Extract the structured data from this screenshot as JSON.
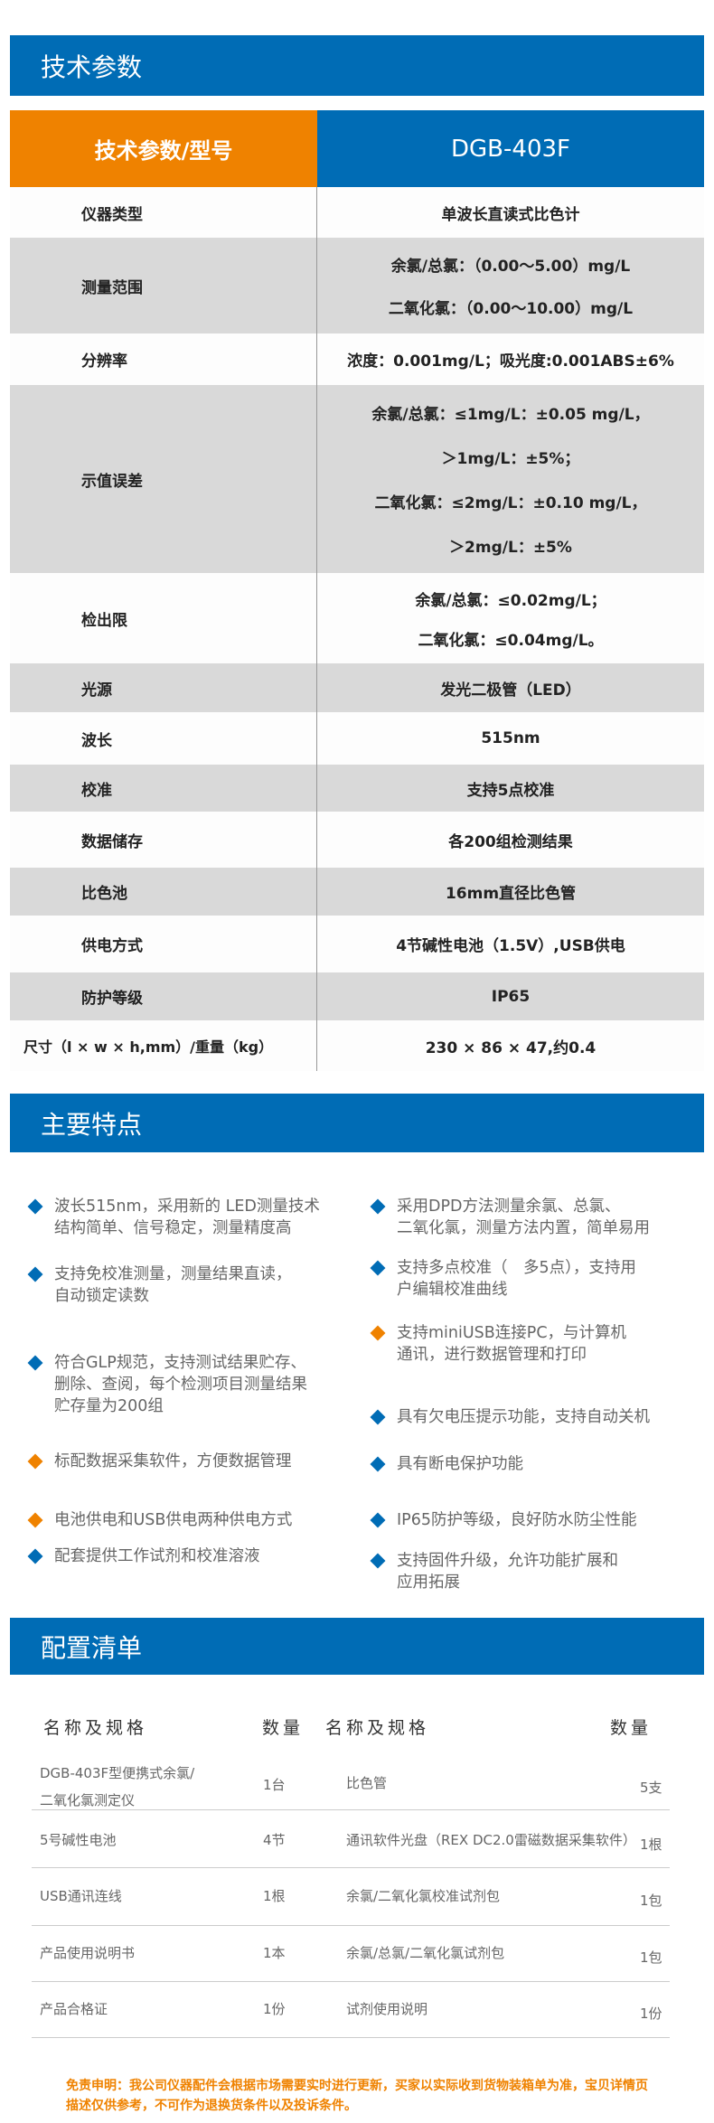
{
  "colors": {
    "blue": "#006cb5",
    "orange": "#ef8200",
    "gray_row": "#d9d9d9"
  },
  "spec_section": {
    "title": "技术参数",
    "header": {
      "param": "技术参数/型号",
      "model": "DGB-403F"
    },
    "rows": [
      {
        "label": "仪器类型",
        "values": [
          "单波长直读式比色计"
        ]
      },
      {
        "label": "测量范围",
        "values": [
          "余氯/总氯：（0.00～5.00）mg/L",
          "二氧化氯：（0.00～10.00）mg/L"
        ]
      },
      {
        "label": "分辨率",
        "values": [
          "浓度：0.001mg/L；吸光度:0.001ABS±6%"
        ]
      },
      {
        "label": "示值误差",
        "values": [
          "余氯/总氯：≤1mg/L：±0.05 mg/L，",
          "＞1mg/L：±5%；",
          "二氧化氯：≤2mg/L：±0.10 mg/L，",
          "＞2mg/L：±5%"
        ]
      },
      {
        "label": "检出限",
        "values": [
          "余氯/总氯：≤0.02mg/L；",
          "二氧化氯：≤0.04mg/L。"
        ]
      },
      {
        "label": "光源",
        "values": [
          "发光二极管（LED）"
        ]
      },
      {
        "label": "波长",
        "values": [
          "515nm"
        ]
      },
      {
        "label": "校准",
        "values": [
          "支持5点校准"
        ]
      },
      {
        "label": "数据储存",
        "values": [
          "各200组检测结果"
        ]
      },
      {
        "label": "比色池",
        "values": [
          "16mm直径比色管"
        ]
      },
      {
        "label": "供电方式",
        "values": [
          "4节碱性电池（1.5V）,USB供电"
        ]
      },
      {
        "label": "防护等级",
        "values": [
          "IP65"
        ]
      },
      {
        "label": "尺寸（l × w × h,mm）/重量（kg）",
        "values": [
          "230 × 86 × 47,约0.4"
        ]
      }
    ]
  },
  "features_section": {
    "title": "主要特点",
    "left": [
      {
        "lines": [
          "波长515nm，采用新的 LED测量技术",
          "结构简单、信号稳定，测量精度高"
        ],
        "bullet": "blue"
      },
      {
        "lines": [
          "支持免校准测量，测量结果直读，",
          "自动锁定读数"
        ],
        "bullet": "blue"
      },
      {
        "lines": [
          "符合GLP规范，支持测试结果贮存、",
          "删除、查阅，每个检测项目测量结果",
          "贮存量为200组"
        ],
        "bullet": "blue"
      },
      {
        "lines": [
          "标配数据采集软件，方便数据管理"
        ],
        "bullet": "orange"
      },
      {
        "lines": [
          "电池供电和USB供电两种供电方式"
        ],
        "bullet": "orange"
      },
      {
        "lines": [
          "配套提供工作试剂和校准溶液"
        ],
        "bullet": "blue"
      }
    ],
    "right": [
      {
        "lines": [
          "采用DPD方法测量余氯、总氯、",
          "二氧化氯，测量方法内置，简单易用"
        ],
        "bullet": "blue"
      },
      {
        "lines": [
          "支持多点校准（　多5点），支持用",
          "户编辑校准曲线"
        ],
        "bullet": "blue"
      },
      {
        "lines": [
          "支持miniUSB连接PC，与计算机",
          "通讯，进行数据管理和打印"
        ],
        "bullet": "orange"
      },
      {
        "lines": [
          "具有欠电压提示功能，支持自动关机"
        ],
        "bullet": "blue"
      },
      {
        "lines": [
          "具有断电保护功能"
        ],
        "bullet": "blue"
      },
      {
        "lines": [
          "IP65防护等级，良好防水防尘性能"
        ],
        "bullet": "blue"
      },
      {
        "lines": [
          "支持固件升级，允许功能扩展和",
          "应用拓展"
        ],
        "bullet": "blue"
      }
    ]
  },
  "packing_section": {
    "title": "配置清单",
    "headers": {
      "name1": "名称及规格",
      "qty1": "数量",
      "name2": "名称及规格",
      "qty2": "数量"
    },
    "rows": [
      {
        "name1": "DGB-403F型便携式余氯/\n二氧化氯测定仪",
        "qty1": "1台",
        "name2": "比色管",
        "qty2": "5支"
      },
      {
        "name1": "5号碱性电池",
        "qty1": "4节",
        "name2": "通讯软件光盘（REX DC2.0雷磁数据采集软件）",
        "qty2": "1根"
      },
      {
        "name1": "USB通讯连线",
        "qty1": "1根",
        "name2": "余氯/二氧化氯校准试剂包",
        "qty2": "1包"
      },
      {
        "name1": "产品使用说明书",
        "qty1": "1本",
        "name2": "余氯/总氯/二氧化氯试剂包",
        "qty2": "1包"
      },
      {
        "name1": "产品合格证",
        "qty1": "1份",
        "name2": "试剂使用说明",
        "qty2": "1份"
      }
    ]
  },
  "disclaimer": "免责申明：我公司仪器配件会根据市场需要实时进行更新，买家以实际收到货物装箱单为准，宝贝详情页描述仅供参考，不可作为退换货条件以及投诉条件。"
}
